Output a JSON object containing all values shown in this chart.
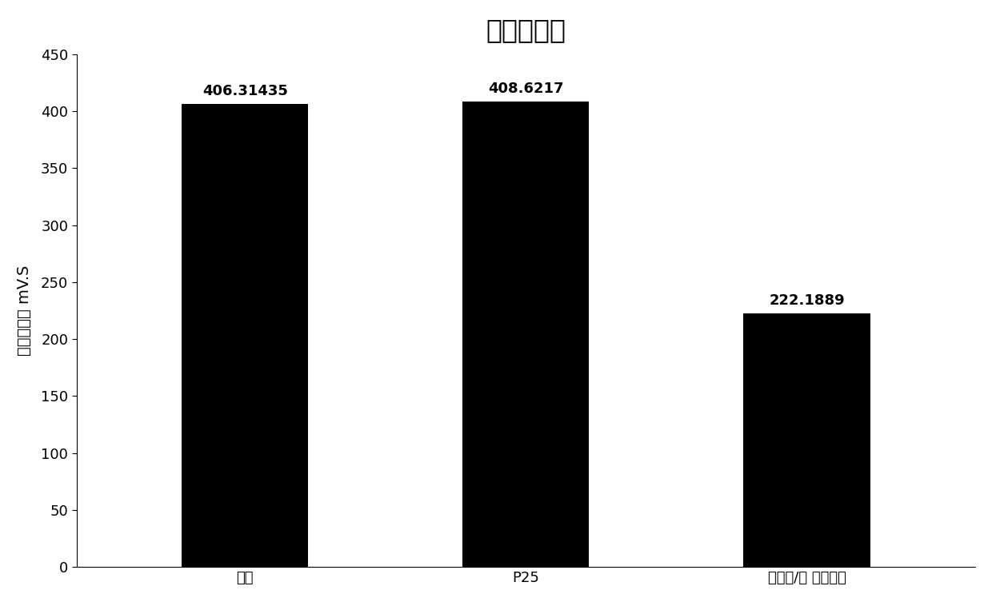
{
  "title": "甲苯峰面积",
  "categories": [
    "空白",
    "P25",
    "石墨烯/金 二氧化钑"
  ],
  "values": [
    406.31435,
    408.6217,
    222.1889
  ],
  "value_labels": [
    "406.31435",
    "408.6217",
    "222.1889"
  ],
  "bar_color": "#000000",
  "ylabel": "甲苯峰面积 mV.S",
  "ylim": [
    0,
    450
  ],
  "yticks": [
    0,
    50,
    100,
    150,
    200,
    250,
    300,
    350,
    400,
    450
  ],
  "background_color": "#ffffff",
  "title_fontsize": 24,
  "label_fontsize": 14,
  "tick_fontsize": 13,
  "value_fontsize": 13,
  "bar_width": 0.45
}
